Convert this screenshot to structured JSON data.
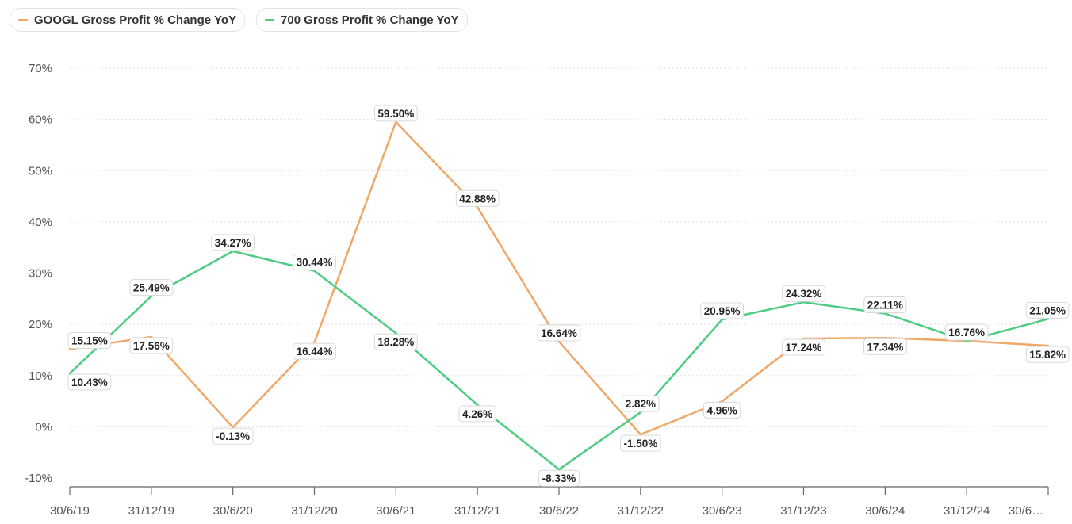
{
  "legend": {
    "items": [
      {
        "label": "GOOGL Gross Profit % Change YoY",
        "color": "#F0A868"
      },
      {
        "label": "700 Gross Profit % Change YoY",
        "color": "#4FCB82"
      }
    ]
  },
  "chart_data": {
    "type": "line",
    "x": [
      "30/6/19",
      "31/12/19",
      "30/6/20",
      "31/12/20",
      "30/6/21",
      "31/12/21",
      "30/6/22",
      "31/12/22",
      "30/6/23",
      "31/12/23",
      "30/6/24",
      "31/12/24",
      "30/6…"
    ],
    "ylim": [
      -10,
      70
    ],
    "yticks": [
      -10,
      0,
      10,
      20,
      30,
      40,
      50,
      60,
      70
    ],
    "ytick_labels": [
      "-10%",
      "0%",
      "10%",
      "20%",
      "30%",
      "40%",
      "50%",
      "60%",
      "70%"
    ],
    "grid": true,
    "legend_position": "top-left",
    "series": [
      {
        "name": "GOOGL Gross Profit % Change YoY",
        "color": "#F0A868",
        "values": [
          15.15,
          17.56,
          -0.13,
          16.44,
          59.5,
          42.88,
          16.64,
          -1.5,
          4.96,
          17.24,
          17.34,
          16.76,
          15.82
        ],
        "labels": [
          "15.15%",
          "17.56%",
          "-0.13%",
          "16.44%",
          "59.50%",
          "42.88%",
          "16.64%",
          "-1.50%",
          "4.96%",
          "17.24%",
          "17.34%",
          "",
          "15.82%"
        ]
      },
      {
        "name": "700 Gross Profit % Change YoY",
        "color": "#4FCB82",
        "values": [
          10.43,
          25.49,
          34.27,
          30.44,
          18.28,
          4.26,
          -8.33,
          2.82,
          20.95,
          24.32,
          22.11,
          16.76,
          21.05
        ],
        "labels": [
          "10.43%",
          "25.49%",
          "34.27%",
          "30.44%",
          "18.28%",
          "4.26%",
          "-8.33%",
          "2.82%",
          "20.95%",
          "24.32%",
          "22.11%",
          "16.76%",
          "21.05%"
        ]
      }
    ]
  }
}
